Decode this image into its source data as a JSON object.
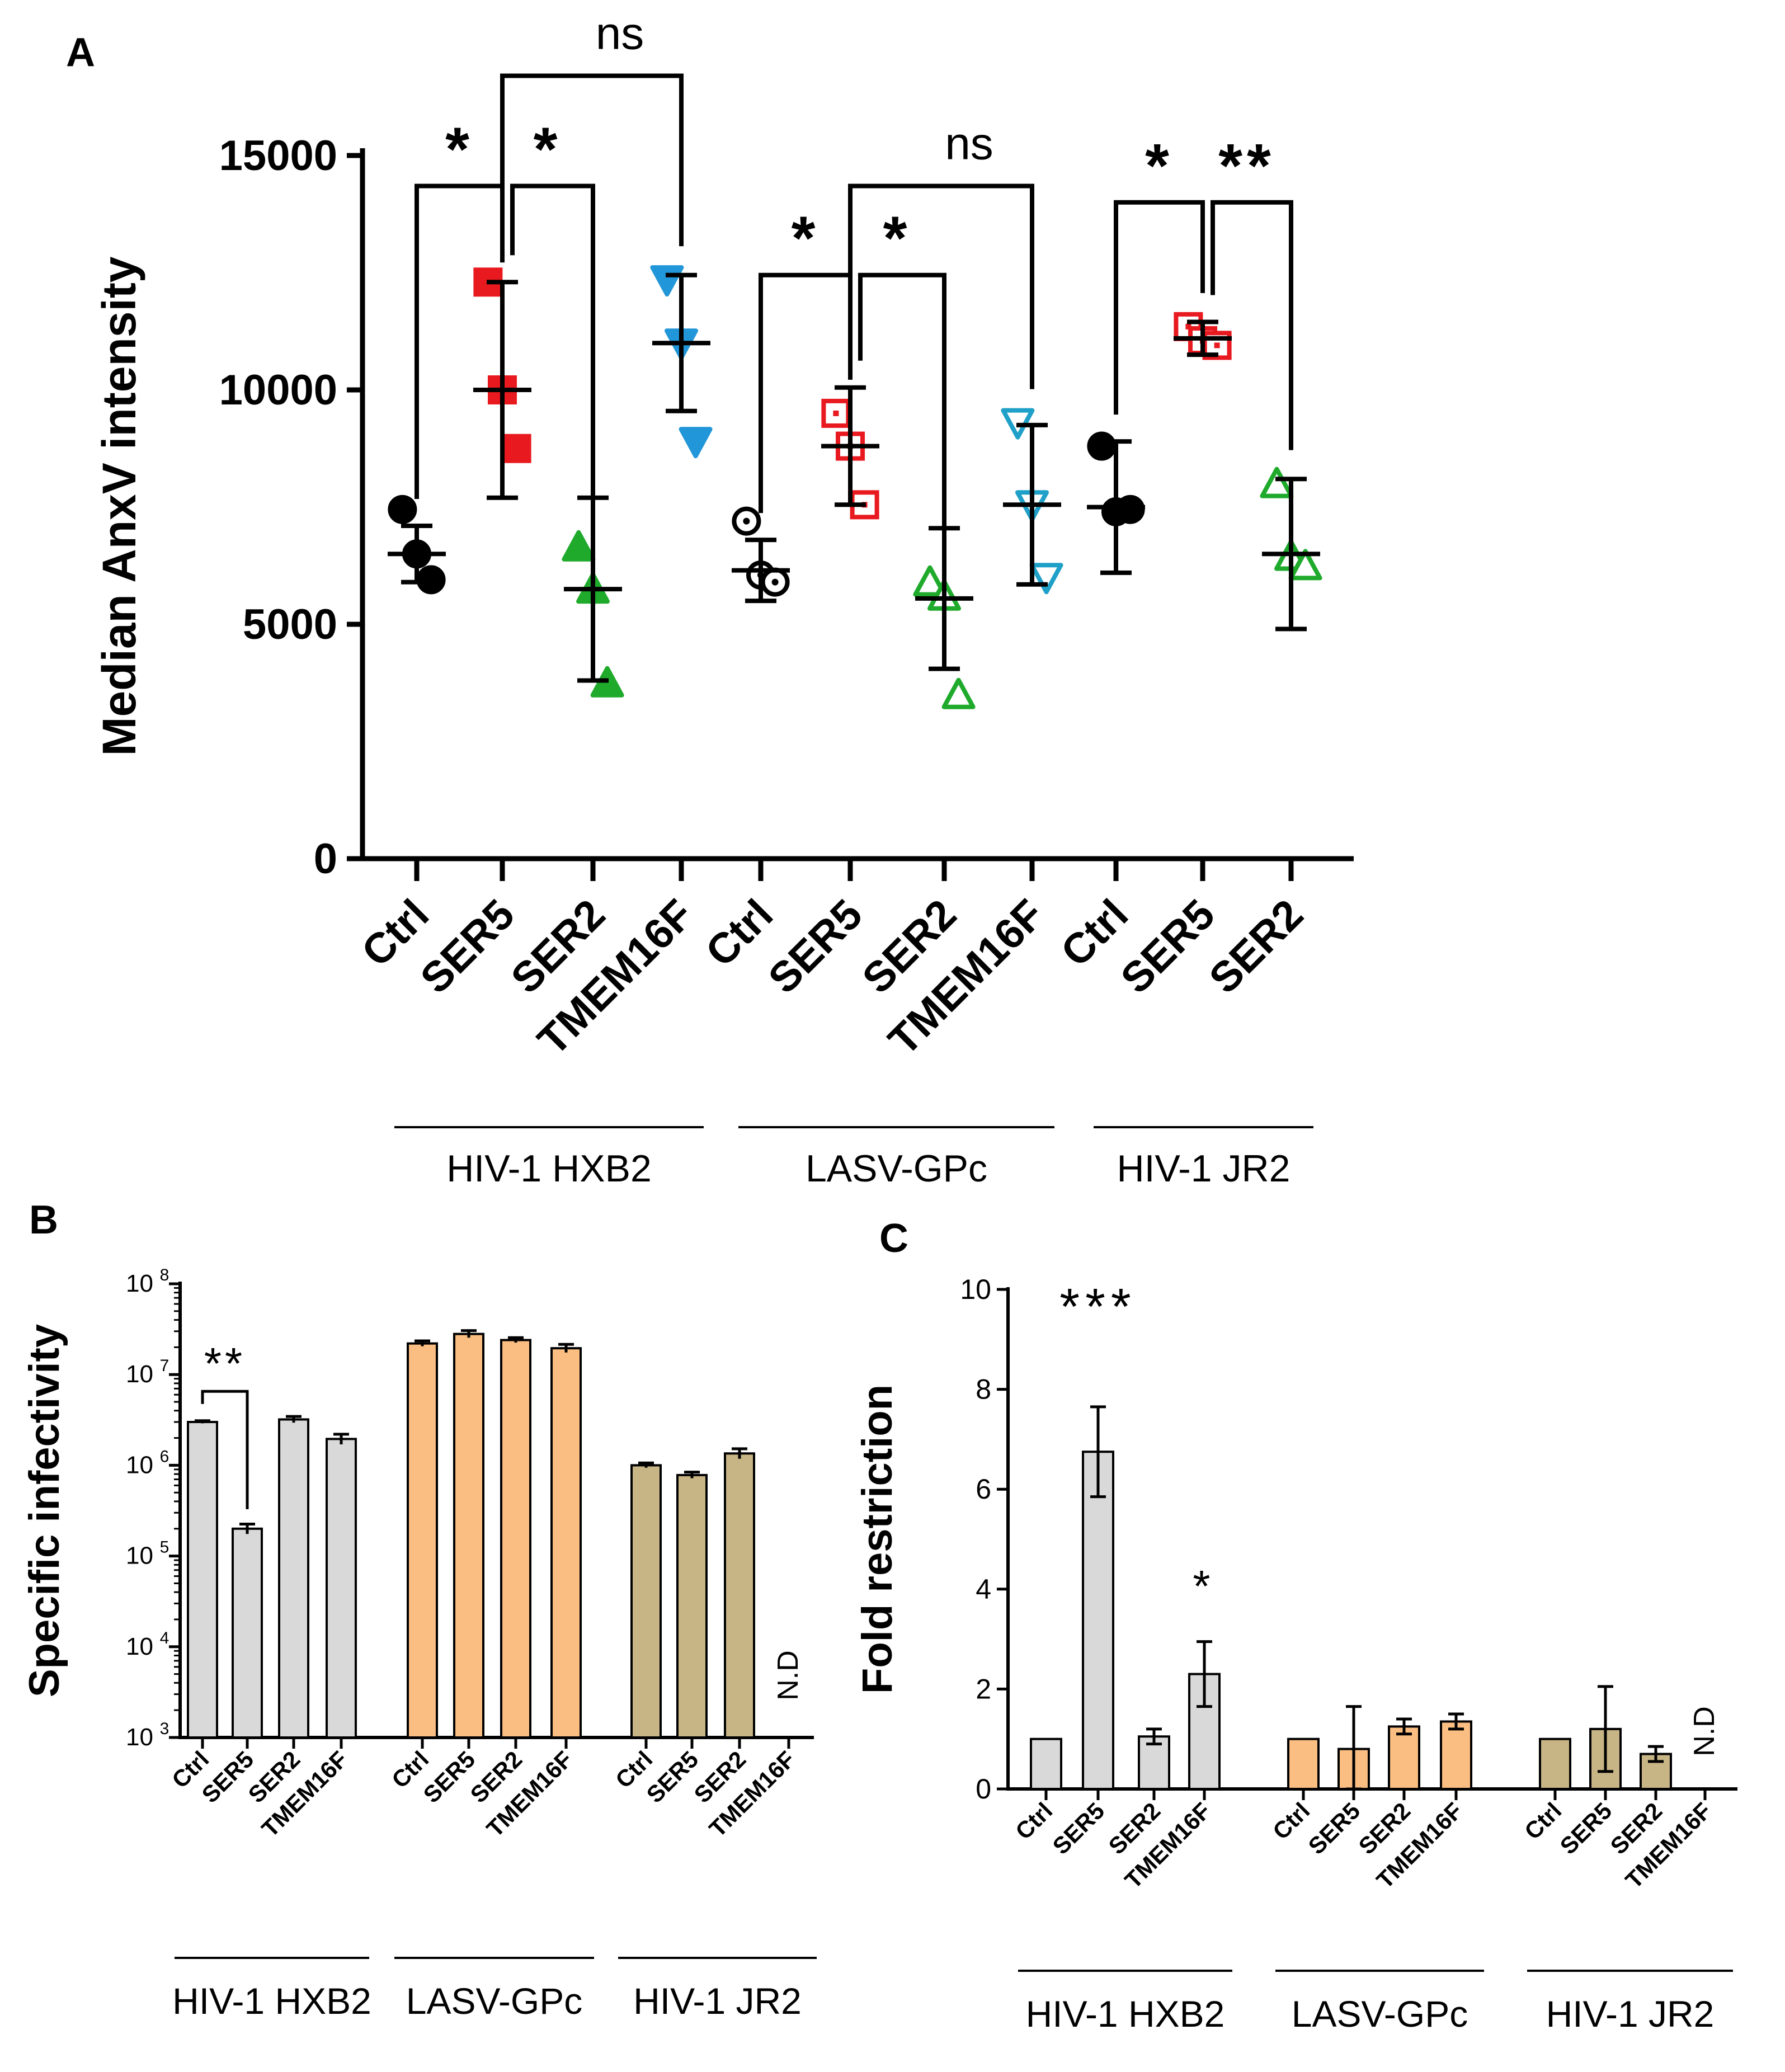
{
  "chart_data": [
    {
      "panel": "A",
      "type": "scatter",
      "title": "",
      "ylabel": "Median AnxV intensity",
      "ylim": [
        0,
        15000
      ],
      "yticks": [
        0,
        5000,
        10000,
        15000
      ],
      "yticklabels": [
        "0",
        "5000",
        "10000",
        "15000"
      ],
      "categories": [
        "Ctrl",
        "SER5",
        "SER2",
        "TMEM16F",
        "Ctrl",
        "SER5",
        "SER2",
        "TMEM16F",
        "Ctrl",
        "SER5",
        "SER2"
      ],
      "groups": [
        {
          "label": "HIV-1 HXB2",
          "from": 0,
          "to": 3
        },
        {
          "label": "LASV-GPc",
          "from": 4,
          "to": 7
        },
        {
          "label": "HIV-1 JR2",
          "from": 8,
          "to": 10
        }
      ],
      "points": [
        {
          "values": [
            7450,
            6500,
            5950
          ],
          "mean": 6500,
          "sd": 600,
          "marker": "circle",
          "filled": true,
          "color": "#000000"
        },
        {
          "values": [
            12300,
            10000,
            8750
          ],
          "mean": 10000,
          "sd": 2300,
          "marker": "square",
          "filled": true,
          "color": "#e8191f"
        },
        {
          "values": [
            6650,
            5750,
            3750
          ],
          "mean": 5750,
          "sd": 1950,
          "marker": "triangle-up",
          "filled": true,
          "color": "#1faa2c"
        },
        {
          "values": [
            12350,
            11000,
            8900
          ],
          "mean": 11000,
          "sd": 1450,
          "marker": "triangle-down",
          "filled": true,
          "color": "#2196d8"
        },
        {
          "values": [
            7200,
            6050,
            5900
          ],
          "mean": 6150,
          "sd": 650,
          "marker": "circle-dot",
          "filled": false,
          "color": "#000000"
        },
        {
          "values": [
            9500,
            8800,
            7550
          ],
          "mean": 8800,
          "sd": 1250,
          "marker": "square-dot",
          "filled": false,
          "color": "#e8191f"
        },
        {
          "values": [
            5900,
            5600,
            3500
          ],
          "mean": 5550,
          "sd": 1500,
          "marker": "triangle-up",
          "filled": false,
          "color": "#1faa2c"
        },
        {
          "values": [
            9300,
            7550,
            6000
          ],
          "mean": 7550,
          "sd": 1700,
          "marker": "triangle-down",
          "filled": false,
          "color": "#1fa0c8"
        },
        {
          "values": [
            8800,
            7400,
            7450
          ],
          "mean": 7500,
          "sd": 1400,
          "marker": "circle",
          "filled": true,
          "color": "#000000"
        },
        {
          "values": [
            11350,
            11050,
            10950
          ],
          "mean": 11100,
          "sd": 350,
          "marker": "square-dot",
          "filled": false,
          "color": "#e8191f"
        },
        {
          "values": [
            8000,
            6450,
            6250
          ],
          "mean": 6500,
          "sd": 1600,
          "marker": "triangle-up",
          "filled": false,
          "color": "#1faa2c"
        }
      ],
      "annotations": [
        {
          "label": "*",
          "from": 0,
          "to": 1,
          "y": 14350
        },
        {
          "label": "*",
          "from": 1,
          "to": 2,
          "y": 14350
        },
        {
          "label": "ns",
          "from": 1,
          "to": 3,
          "y": 16700
        },
        {
          "label": "*",
          "from": 4,
          "to": 5,
          "y": 12450
        },
        {
          "label": "*",
          "from": 5,
          "to": 6,
          "y": 12450
        },
        {
          "label": "ns",
          "from": 5,
          "to": 7,
          "y": 14350
        },
        {
          "label": "*",
          "from": 8,
          "to": 9,
          "y": 14000
        },
        {
          "label": "**",
          "from": 9,
          "to": 10,
          "y": 14000
        }
      ]
    },
    {
      "panel": "B",
      "type": "bar",
      "title": "",
      "yscale": "log",
      "ylabel": "Specific infectivity",
      "ylim": [
        1000,
        100000000
      ],
      "ytick_bases": [
        "10",
        "10",
        "10",
        "10",
        "10",
        "10"
      ],
      "ytick_exponents": [
        "3",
        "4",
        "5",
        "6",
        "7",
        "8"
      ],
      "categories": [
        "Ctrl",
        "SER5",
        "SER2",
        "TMEM16F",
        "Ctrl",
        "SER5",
        "SER2",
        "TMEM16F",
        "Ctrl",
        "SER5",
        "SER2",
        "TMEM16F"
      ],
      "values": [
        3000000,
        200000,
        3200000,
        1950000,
        22000000,
        28000000,
        24000000,
        19500000,
        1000000,
        780000,
        1350000,
        null
      ],
      "errors": [
        100000,
        25000,
        250000,
        250000,
        1500000,
        2500000,
        1500000,
        2000000,
        60000,
        60000,
        170000,
        null
      ],
      "colors": [
        "#d9d9d9",
        "#d9d9d9",
        "#d9d9d9",
        "#d9d9d9",
        "#fbbe82",
        "#fbbe82",
        "#fbbe82",
        "#fbbe82",
        "#c8b585",
        "#c8b585",
        "#c8b585",
        "#c8b585"
      ],
      "missing_label": "N.D",
      "groups": [
        {
          "label": "HIV-1 HXB2",
          "from": 0,
          "to": 3
        },
        {
          "label": "LASV-GPc",
          "from": 4,
          "to": 7
        },
        {
          "label": "HIV-1 JR2",
          "from": 8,
          "to": 11
        }
      ],
      "annotations": [
        {
          "label": "**",
          "from": 0,
          "to": 1,
          "y": 10000000
        }
      ]
    },
    {
      "panel": "C",
      "type": "bar",
      "title": "",
      "ylabel": "Fold restriction",
      "ylim": [
        0,
        10
      ],
      "yticks": [
        0,
        2,
        4,
        6,
        8,
        10
      ],
      "yticklabels": [
        "0",
        "2",
        "4",
        "6",
        "8",
        "10"
      ],
      "categories": [
        "Ctrl",
        "SER5",
        "SER2",
        "TMEM16F",
        "Ctrl",
        "SER5",
        "SER2",
        "TMEM16F",
        "Ctrl",
        "SER5",
        "SER2",
        "TMEM16F"
      ],
      "values": [
        1,
        6.75,
        1.05,
        2.3,
        1,
        0.8,
        1.25,
        1.35,
        1,
        1.2,
        0.7,
        null
      ],
      "errors": [
        0,
        0.9,
        0.15,
        0.65,
        0,
        0.85,
        0.15,
        0.15,
        0,
        0.85,
        0.15,
        null
      ],
      "colors": [
        "#d9d9d9",
        "#d9d9d9",
        "#d9d9d9",
        "#d9d9d9",
        "#fbbe82",
        "#fbbe82",
        "#fbbe82",
        "#fbbe82",
        "#c8b585",
        "#c8b585",
        "#c8b585",
        "#c8b585"
      ],
      "missing_label": "N.D",
      "groups": [
        {
          "label": "HIV-1 HXB2",
          "from": 0,
          "to": 3
        },
        {
          "label": "LASV-GPc",
          "from": 4,
          "to": 7
        },
        {
          "label": "HIV-1 JR2",
          "from": 8,
          "to": 11
        }
      ],
      "star_labels": [
        {
          "label": "***",
          "index": 1,
          "y": 9.3
        },
        {
          "label": "*",
          "index": 3,
          "y": 3.75
        }
      ]
    }
  ],
  "panels": {
    "a_label": "A",
    "b_label": "B",
    "c_label": "C"
  }
}
